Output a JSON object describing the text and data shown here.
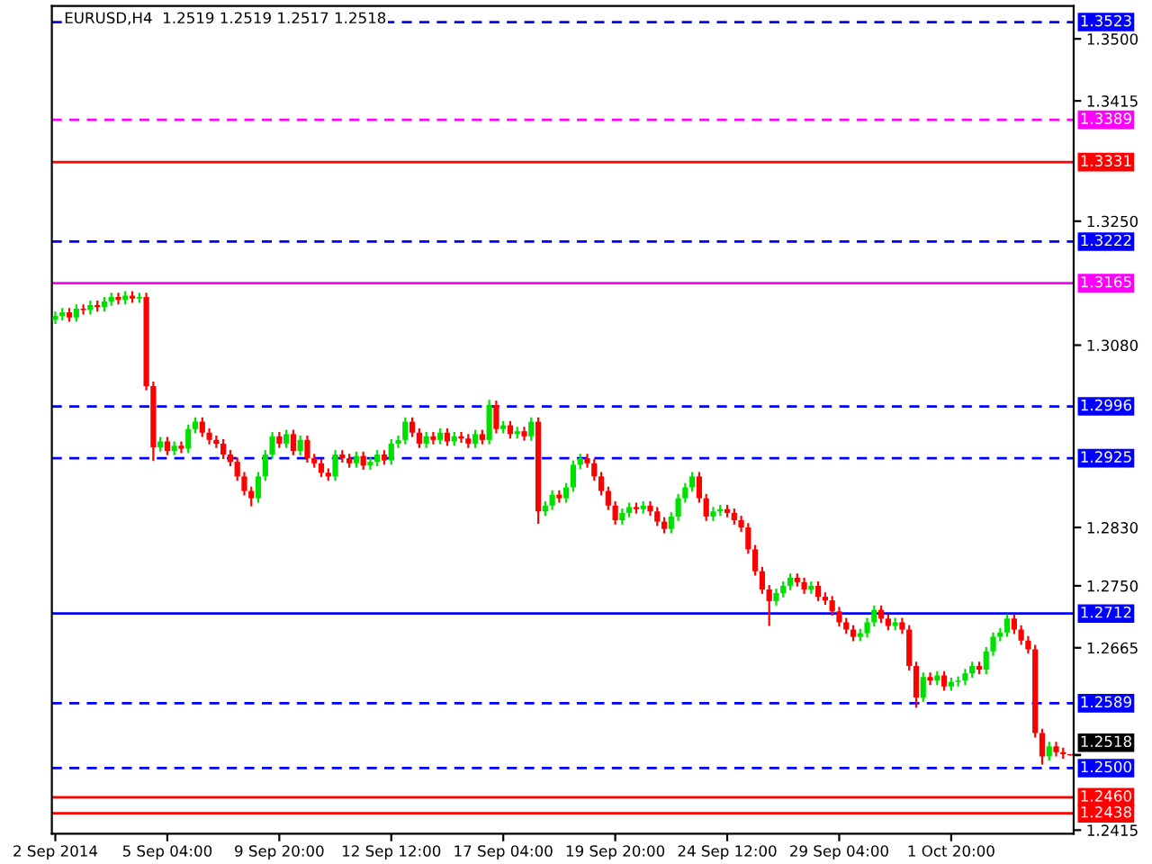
{
  "chart_data": {
    "type": "candlestick",
    "title": "EURUSD,H4  1.2519 1.2519 1.2517 1.2518",
    "categories": [
      "2 Sep 2014",
      null,
      null,
      null,
      null,
      null,
      null,
      null,
      null,
      null,
      null,
      null,
      null,
      null,
      null,
      null,
      "5 Sep 04:00",
      null,
      null,
      null,
      null,
      null,
      null,
      null,
      null,
      null,
      null,
      null,
      null,
      null,
      null,
      null,
      "9 Sep 20:00",
      null,
      null,
      null,
      null,
      null,
      null,
      null,
      null,
      null,
      null,
      null,
      null,
      null,
      null,
      null,
      "12 Sep 12:00",
      null,
      null,
      null,
      null,
      null,
      null,
      null,
      null,
      null,
      null,
      null,
      null,
      null,
      null,
      null,
      "17 Sep 04:00",
      null,
      null,
      null,
      null,
      null,
      null,
      null,
      null,
      null,
      null,
      null,
      null,
      null,
      null,
      null,
      "19 Sep 20:00",
      null,
      null,
      null,
      null,
      null,
      null,
      null,
      null,
      null,
      null,
      null,
      null,
      null,
      null,
      null,
      "24 Sep 12:00",
      null,
      null,
      null,
      null,
      null,
      null,
      null,
      null,
      null,
      null,
      null,
      null,
      null,
      null,
      null,
      "29 Sep 04:00",
      null,
      null,
      null,
      null,
      null,
      null,
      null,
      null,
      null,
      null,
      null,
      null,
      null,
      null,
      null,
      "1 Oct 20:00",
      null,
      null,
      null,
      null,
      null,
      null,
      null,
      null,
      null,
      null,
      null,
      null,
      null,
      null,
      null,
      null,
      null
    ],
    "ohlc": [
      [
        1.3115,
        1.3126,
        1.3109,
        1.312
      ],
      [
        1.312,
        1.3131,
        1.3114,
        1.3125
      ],
      [
        1.3125,
        1.3131,
        1.3112,
        1.3118
      ],
      [
        1.3118,
        1.3136,
        1.3112,
        1.313
      ],
      [
        1.313,
        1.3136,
        1.3122,
        1.3128
      ],
      [
        1.3128,
        1.3141,
        1.3122,
        1.3135
      ],
      [
        1.3135,
        1.3141,
        1.3126,
        1.3132
      ],
      [
        1.3132,
        1.3146,
        1.3126,
        1.314
      ],
      [
        1.314,
        1.3152,
        1.3134,
        1.3146
      ],
      [
        1.3146,
        1.3152,
        1.3136,
        1.3142
      ],
      [
        1.3142,
        1.3154,
        1.3136,
        1.3148
      ],
      [
        1.3148,
        1.3154,
        1.3138,
        1.3144
      ],
      [
        1.3144,
        1.3152,
        1.3138,
        1.3146
      ],
      [
        1.3146,
        1.3152,
        1.3018,
        1.3024
      ],
      [
        1.3024,
        1.303,
        1.2921,
        1.294
      ],
      [
        1.294,
        1.2954,
        1.2934,
        1.2948
      ],
      [
        1.2948,
        1.2954,
        1.2929,
        1.2935
      ],
      [
        1.2935,
        1.2948,
        1.2929,
        1.2942
      ],
      [
        1.2942,
        1.2948,
        1.2932,
        1.2938
      ],
      [
        1.2938,
        1.2971,
        1.2932,
        1.2965
      ],
      [
        1.2965,
        1.2981,
        1.2959,
        1.2975
      ],
      [
        1.2975,
        1.2981,
        1.2954,
        1.296
      ],
      [
        1.296,
        1.2966,
        1.2944,
        1.295
      ],
      [
        1.295,
        1.2956,
        1.2939,
        1.2945
      ],
      [
        1.2945,
        1.2951,
        1.2924,
        1.293
      ],
      [
        1.293,
        1.2936,
        1.2914,
        1.292
      ],
      [
        1.292,
        1.2926,
        1.2894,
        1.29
      ],
      [
        1.29,
        1.2906,
        1.2874,
        1.288
      ],
      [
        1.288,
        1.2886,
        1.2859,
        1.287
      ],
      [
        1.287,
        1.2906,
        1.2864,
        1.29
      ],
      [
        1.29,
        1.2936,
        1.2894,
        1.293
      ],
      [
        1.293,
        1.2961,
        1.2924,
        1.2955
      ],
      [
        1.2955,
        1.2961,
        1.2939,
        1.2945
      ],
      [
        1.2945,
        1.2964,
        1.2939,
        1.2958
      ],
      [
        1.2958,
        1.2964,
        1.2929,
        1.2935
      ],
      [
        1.2935,
        1.2956,
        1.2929,
        1.295
      ],
      [
        1.295,
        1.2956,
        1.2919,
        1.2925
      ],
      [
        1.2925,
        1.2931,
        1.2912,
        1.2918
      ],
      [
        1.2918,
        1.2924,
        1.2899,
        1.2905
      ],
      [
        1.2905,
        1.2911,
        1.2894,
        1.29
      ],
      [
        1.29,
        1.2936,
        1.2894,
        1.293
      ],
      [
        1.293,
        1.2936,
        1.2919,
        1.2925
      ],
      [
        1.2925,
        1.2931,
        1.2912,
        1.2918
      ],
      [
        1.2918,
        1.2934,
        1.2912,
        1.2928
      ],
      [
        1.2928,
        1.2934,
        1.2909,
        1.2915
      ],
      [
        1.2915,
        1.2926,
        1.2909,
        1.292
      ],
      [
        1.292,
        1.2936,
        1.2914,
        1.293
      ],
      [
        1.293,
        1.2936,
        1.2916,
        1.2922
      ],
      [
        1.2922,
        1.2951,
        1.2916,
        1.2945
      ],
      [
        1.2945,
        1.2956,
        1.2939,
        1.295
      ],
      [
        1.295,
        1.2981,
        1.2944,
        1.2975
      ],
      [
        1.2975,
        1.2981,
        1.2954,
        1.296
      ],
      [
        1.296,
        1.2966,
        1.2939,
        1.2945
      ],
      [
        1.2945,
        1.2961,
        1.2939,
        1.2955
      ],
      [
        1.2955,
        1.2961,
        1.2944,
        1.295
      ],
      [
        1.295,
        1.2966,
        1.2944,
        1.296
      ],
      [
        1.296,
        1.2966,
        1.2942,
        1.2948
      ],
      [
        1.2948,
        1.2961,
        1.2942,
        1.2955
      ],
      [
        1.2955,
        1.2961,
        1.2946,
        1.2952
      ],
      [
        1.2952,
        1.2958,
        1.2939,
        1.2945
      ],
      [
        1.2945,
        1.2964,
        1.2939,
        1.2958
      ],
      [
        1.2958,
        1.2964,
        1.2944,
        1.295
      ],
      [
        1.295,
        1.3005,
        1.2944,
        1.2998
      ],
      [
        1.2998,
        1.3004,
        1.2959,
        1.2965
      ],
      [
        1.2965,
        1.2976,
        1.2959,
        1.297
      ],
      [
        1.297,
        1.2976,
        1.2952,
        1.2958
      ],
      [
        1.2958,
        1.2968,
        1.2952,
        1.2962
      ],
      [
        1.2962,
        1.2968,
        1.2949,
        1.2955
      ],
      [
        1.2955,
        1.2981,
        1.2949,
        1.2975
      ],
      [
        1.2975,
        1.2981,
        1.2835,
        1.2852
      ],
      [
        1.2852,
        1.2866,
        1.2846,
        1.286
      ],
      [
        1.286,
        1.2881,
        1.2854,
        1.2875
      ],
      [
        1.2875,
        1.2881,
        1.2864,
        1.287
      ],
      [
        1.287,
        1.2891,
        1.2864,
        1.2885
      ],
      [
        1.2885,
        1.2922,
        1.2879,
        1.2916
      ],
      [
        1.2916,
        1.2931,
        1.291,
        1.2925
      ],
      [
        1.2925,
        1.2931,
        1.2912,
        1.2918
      ],
      [
        1.2918,
        1.2924,
        1.2894,
        1.29
      ],
      [
        1.29,
        1.2906,
        1.2874,
        1.288
      ],
      [
        1.288,
        1.2886,
        1.2854,
        1.286
      ],
      [
        1.286,
        1.2866,
        1.2834,
        1.284
      ],
      [
        1.284,
        1.2856,
        1.2834,
        1.285
      ],
      [
        1.285,
        1.2864,
        1.2844,
        1.2858
      ],
      [
        1.2858,
        1.2864,
        1.2849,
        1.2855
      ],
      [
        1.2855,
        1.2866,
        1.2849,
        1.286
      ],
      [
        1.286,
        1.2866,
        1.2846,
        1.2852
      ],
      [
        1.2852,
        1.2858,
        1.2832,
        1.2838
      ],
      [
        1.2838,
        1.2844,
        1.2822,
        1.2828
      ],
      [
        1.2828,
        1.2851,
        1.2822,
        1.2845
      ],
      [
        1.2845,
        1.2876,
        1.2839,
        1.287
      ],
      [
        1.287,
        1.2891,
        1.2864,
        1.2885
      ],
      [
        1.2885,
        1.2906,
        1.2879,
        1.29
      ],
      [
        1.29,
        1.2906,
        1.2864,
        1.287
      ],
      [
        1.287,
        1.2876,
        1.2839,
        1.2845
      ],
      [
        1.2845,
        1.2858,
        1.2839,
        1.2852
      ],
      [
        1.2852,
        1.2861,
        1.2846,
        1.2855
      ],
      [
        1.2855,
        1.2861,
        1.2844,
        1.285
      ],
      [
        1.285,
        1.2856,
        1.2834,
        1.284
      ],
      [
        1.284,
        1.2846,
        1.2824,
        1.283
      ],
      [
        1.283,
        1.2836,
        1.2794,
        1.28
      ],
      [
        1.28,
        1.2806,
        1.2764,
        1.277
      ],
      [
        1.277,
        1.2776,
        1.2739,
        1.2745
      ],
      [
        1.2745,
        1.2751,
        1.2695,
        1.2729
      ],
      [
        1.2729,
        1.2746,
        1.2723,
        1.274
      ],
      [
        1.274,
        1.2756,
        1.2734,
        1.275
      ],
      [
        1.275,
        1.2767,
        1.2744,
        1.2761
      ],
      [
        1.2761,
        1.2767,
        1.2749,
        1.2755
      ],
      [
        1.2755,
        1.2761,
        1.2739,
        1.2745
      ],
      [
        1.2745,
        1.2756,
        1.2739,
        1.275
      ],
      [
        1.275,
        1.2756,
        1.2729,
        1.2735
      ],
      [
        1.2735,
        1.2741,
        1.2724,
        1.273
      ],
      [
        1.273,
        1.2736,
        1.2709,
        1.2715
      ],
      [
        1.2715,
        1.2721,
        1.2694,
        1.27
      ],
      [
        1.27,
        1.2706,
        1.2684,
        1.269
      ],
      [
        1.269,
        1.2696,
        1.2674,
        1.268
      ],
      [
        1.268,
        1.2691,
        1.2674,
        1.2685
      ],
      [
        1.2685,
        1.2706,
        1.2679,
        1.27
      ],
      [
        1.27,
        1.2723,
        1.2694,
        1.2717
      ],
      [
        1.2717,
        1.2723,
        1.2699,
        1.2705
      ],
      [
        1.2705,
        1.2711,
        1.2689,
        1.2695
      ],
      [
        1.2695,
        1.2706,
        1.2689,
        1.27
      ],
      [
        1.27,
        1.2706,
        1.2684,
        1.269
      ],
      [
        1.269,
        1.2696,
        1.2634,
        1.264
      ],
      [
        1.264,
        1.2646,
        1.2583,
        1.2597
      ],
      [
        1.2597,
        1.2631,
        1.2591,
        1.2625
      ],
      [
        1.2625,
        1.2631,
        1.2614,
        1.262
      ],
      [
        1.262,
        1.2633,
        1.2614,
        1.2627
      ],
      [
        1.2627,
        1.2633,
        1.2606,
        1.2612
      ],
      [
        1.2612,
        1.2624,
        1.2606,
        1.2618
      ],
      [
        1.2618,
        1.2626,
        1.2612,
        1.262
      ],
      [
        1.262,
        1.2636,
        1.2614,
        1.263
      ],
      [
        1.263,
        1.2646,
        1.2624,
        1.264
      ],
      [
        1.264,
        1.2646,
        1.2629,
        1.2635
      ],
      [
        1.2635,
        1.2666,
        1.2629,
        1.266
      ],
      [
        1.266,
        1.2686,
        1.2654,
        1.268
      ],
      [
        1.268,
        1.2692,
        1.2674,
        1.2686
      ],
      [
        1.2686,
        1.2711,
        1.268,
        1.2705
      ],
      [
        1.2705,
        1.2711,
        1.2684,
        1.269
      ],
      [
        1.269,
        1.2696,
        1.2669,
        1.2675
      ],
      [
        1.2675,
        1.2681,
        1.2657,
        1.2663
      ],
      [
        1.2663,
        1.2669,
        1.2542,
        1.2548
      ],
      [
        1.2548,
        1.2554,
        1.2505,
        1.2516
      ],
      [
        1.2516,
        1.2536,
        1.251,
        1.253
      ],
      [
        1.253,
        1.2536,
        1.2516,
        1.2522
      ],
      [
        1.2522,
        1.2528,
        1.2513,
        1.2519
      ],
      [
        1.2519,
        1.2519,
        1.2517,
        1.2518
      ]
    ],
    "colors": [
      "#00e000",
      "#00e000",
      "#ff0000",
      "#00e000",
      "#ff0000",
      "#00e000",
      "#ff0000",
      "#00e000",
      "#00e000",
      "#ff0000",
      "#00e000",
      "#ff0000",
      "#00e000",
      "#ff0000",
      "#ff0000",
      "#00e000",
      "#ff0000",
      "#00e000",
      "#ff0000",
      "#00e000",
      "#00e000",
      "#ff0000",
      "#ff0000",
      "#ff0000",
      "#ff0000",
      "#ff0000",
      "#ff0000",
      "#ff0000",
      "#ff0000",
      "#00e000",
      "#00e000",
      "#00e000",
      "#ff0000",
      "#00e000",
      "#ff0000",
      "#00e000",
      "#ff0000",
      "#ff0000",
      "#ff0000",
      "#ff0000",
      "#00e000",
      "#ff0000",
      "#ff0000",
      "#00e000",
      "#ff0000",
      "#00e000",
      "#00e000",
      "#ff0000",
      "#00e000",
      "#00e000",
      "#00e000",
      "#ff0000",
      "#ff0000",
      "#00e000",
      "#ff0000",
      "#00e000",
      "#ff0000",
      "#00e000",
      "#ff0000",
      "#ff0000",
      "#00e000",
      "#ff0000",
      "#00e000",
      "#ff0000",
      "#00e000",
      "#ff0000",
      "#00e000",
      "#ff0000",
      "#00e000",
      "#ff0000",
      "#00e000",
      "#00e000",
      "#ff0000",
      "#00e000",
      "#00e000",
      "#00e000",
      "#ff0000",
      "#ff0000",
      "#ff0000",
      "#ff0000",
      "#ff0000",
      "#00e000",
      "#00e000",
      "#ff0000",
      "#00e000",
      "#ff0000",
      "#ff0000",
      "#ff0000",
      "#00e000",
      "#00e000",
      "#00e000",
      "#00e000",
      "#ff0000",
      "#ff0000",
      "#00e000",
      "#00e000",
      "#ff0000",
      "#ff0000",
      "#ff0000",
      "#ff0000",
      "#ff0000",
      "#ff0000",
      "#ff0000",
      "#00e000",
      "#00e000",
      "#00e000",
      "#ff0000",
      "#ff0000",
      "#00e000",
      "#ff0000",
      "#ff0000",
      "#ff0000",
      "#ff0000",
      "#ff0000",
      "#ff0000",
      "#00e000",
      "#00e000",
      "#00e000",
      "#ff0000",
      "#ff0000",
      "#00e000",
      "#ff0000",
      "#ff0000",
      "#ff0000",
      "#00e000",
      "#ff0000",
      "#00e000",
      "#ff0000",
      "#00e000",
      "#00e000",
      "#00e000",
      "#00e000",
      "#ff0000",
      "#00e000",
      "#00e000",
      "#00e000",
      "#00e000",
      "#ff0000",
      "#ff0000",
      "#ff0000",
      "#ff0000",
      "#ff0000",
      "#00e000",
      "#ff0000",
      "#ff0000",
      "#ff0000"
    ],
    "annotations": [
      "1.2518"
    ],
    "ylim": [
      1.241,
      1.3545
    ],
    "yticks": [
      {
        "value": 1.35,
        "label": "1.3500"
      },
      1.3415,
      {
        "value": 1.325,
        "label": "1.3250"
      },
      {
        "value": 1.308,
        "label": "1.3080"
      },
      {
        "value": 1.283,
        "label": "1.2830"
      },
      {
        "value": 1.275,
        "label": "1.2750"
      },
      1.2665,
      1.2415
    ],
    "ref_lines": [
      {
        "axis": "y",
        "value": 1.3523,
        "label": "1.3523",
        "color": "#0000ff",
        "line_style": "dashed"
      },
      {
        "axis": "y",
        "value": 1.3389,
        "label": "1.3389",
        "color": "#ff00ff",
        "line_style": "dashed"
      },
      {
        "axis": "y",
        "value": 1.3331,
        "label": "1.3331",
        "color": "#ff0000",
        "line_style": "solid"
      },
      {
        "axis": "y",
        "value": 1.3222,
        "label": "1.3222",
        "color": "#0000ff",
        "line_style": "dashed"
      },
      {
        "axis": "y",
        "value": 1.3165,
        "label": "1.3165",
        "color": "#ff00ff",
        "line_style": "solid"
      },
      {
        "axis": "y",
        "value": 1.2996,
        "label": "1.2996",
        "color": "#0000ff",
        "line_style": "dashed"
      },
      {
        "axis": "y",
        "value": 1.2925,
        "label": "1.2925",
        "color": "#0000ff",
        "line_style": "dashed"
      },
      {
        "axis": "y",
        "value": 1.2712,
        "label": "1.2712",
        "color": "#0000ff",
        "line_style": "solid"
      },
      {
        "axis": "y",
        "value": 1.2589,
        "label": "1.2589",
        "color": "#0000ff",
        "line_style": "dashed"
      },
      {
        "axis": "y",
        "value": 1.25,
        "label": "1.2500",
        "color": "#0000ff",
        "line_style": "dashed"
      },
      {
        "axis": "y",
        "value": 1.246,
        "label": "1.2460",
        "color": "#ff0000",
        "line_style": "solid"
      },
      {
        "axis": "y",
        "value": 1.2438,
        "label": "1.2438",
        "color": "#ff0000",
        "line_style": "solid"
      }
    ],
    "grid": false,
    "legend": false
  }
}
